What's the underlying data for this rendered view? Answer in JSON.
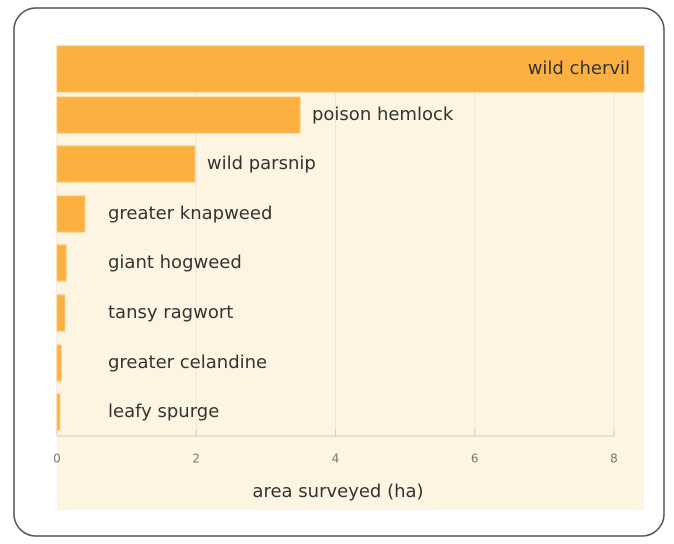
{
  "chart_data": {
    "type": "bar",
    "orientation": "horizontal",
    "categories": [
      "wild chervil",
      "poison hemlock",
      "wild parsnip",
      "greater knapweed",
      "giant hogweed",
      "tansy ragwort",
      "greater celandine",
      "leafy spurge"
    ],
    "values": [
      8.43,
      3.49,
      1.98,
      0.4,
      0.13,
      0.11,
      0.06,
      0.04
    ],
    "color": "#fbb040",
    "xlabel": "area surveyed (ha)",
    "xlim": [
      0,
      8
    ],
    "xticks": [
      0,
      2,
      4,
      6,
      8
    ],
    "grid": true
  }
}
